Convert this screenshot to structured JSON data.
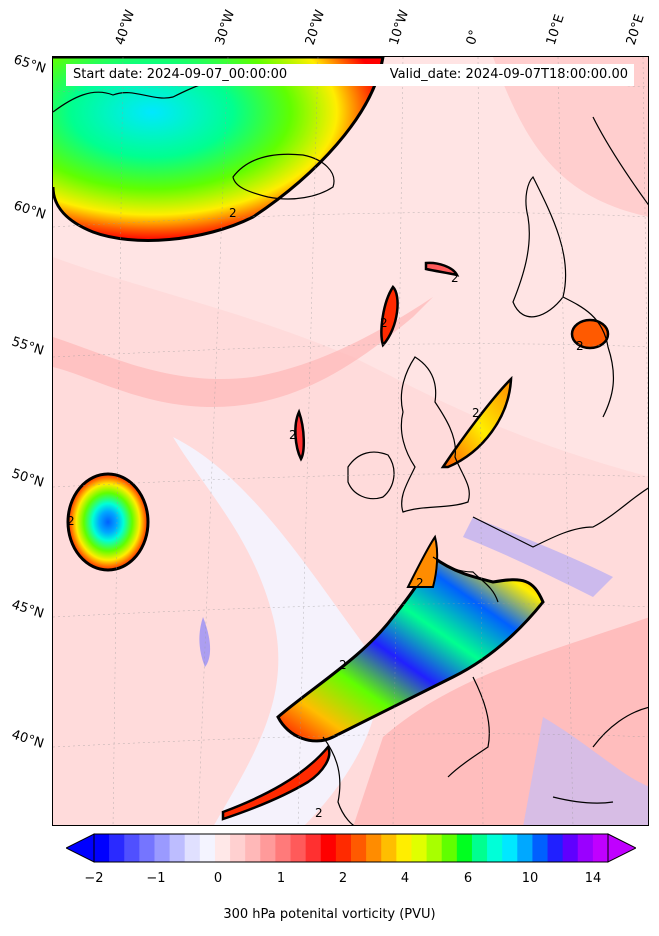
{
  "header": {
    "start_date": "Start date: 2024-09-07_00:00:00",
    "valid_date": "Valid_date: 2024-09-07T18:00:00.00"
  },
  "latitude_labels": [
    "65°N",
    "60°N",
    "55°N",
    "50°N",
    "45°N",
    "40°N"
  ],
  "longitude_labels": [
    "40°W",
    "30°W",
    "20°W",
    "10°W",
    "0°",
    "10°E",
    "20°E"
  ],
  "contour_label": "2",
  "colorbar": {
    "label": "300 hPa potenital vorticity (PVU)",
    "ticks": [
      "−2",
      "−1",
      "0",
      "1",
      "2",
      "4",
      "6",
      "10",
      "14"
    ],
    "colors": [
      "#0000ff",
      "#2a2aff",
      "#5050ff",
      "#7575ff",
      "#9a9aff",
      "#bdbdff",
      "#e0e0ff",
      "#f4f4ff",
      "#ffe8e8",
      "#ffd0d0",
      "#ffb8b8",
      "#ff9a9a",
      "#ff7a7a",
      "#ff5a5a",
      "#ff3030",
      "#ff0000",
      "#ff2a00",
      "#ff5a00",
      "#ff8c00",
      "#ffbe00",
      "#ffee00",
      "#e0ff00",
      "#a8ff00",
      "#60ff00",
      "#00ff20",
      "#00ff90",
      "#00ffd8",
      "#00e8ff",
      "#00a8ff",
      "#0060ff",
      "#2020ff",
      "#6000ff",
      "#9a00ff",
      "#c000ff"
    ]
  }
}
